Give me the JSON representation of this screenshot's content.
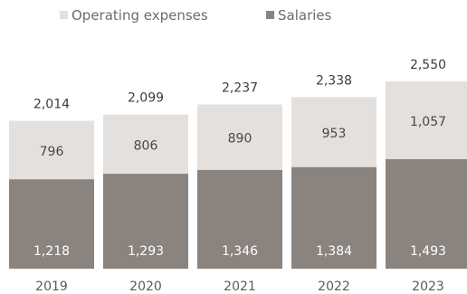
{
  "chart_data": {
    "type": "bar",
    "stacked": true,
    "categories": [
      "2019",
      "2020",
      "2021",
      "2022",
      "2023"
    ],
    "series": [
      {
        "name": "Salaries",
        "values": [
          1218,
          1293,
          1346,
          1384,
          1493
        ]
      },
      {
        "name": "Operating expenses",
        "values": [
          796,
          806,
          890,
          953,
          1057
        ]
      }
    ],
    "totals": [
      2014,
      2099,
      2237,
      2338,
      2550
    ],
    "value_labels": {
      "Salaries": [
        "1,218",
        "1,293",
        "1,346",
        "1,384",
        "1,493"
      ],
      "Operating expenses": [
        "796",
        "806",
        "890",
        "953",
        "1,057"
      ],
      "totals": [
        "2,014",
        "2,099",
        "2,237",
        "2,338",
        "2,550"
      ]
    },
    "legend": {
      "position": "top-left",
      "items": [
        "Operating expenses",
        "Salaries"
      ]
    },
    "colors": {
      "Salaries": "#8a837e",
      "Operating expenses": "#e4e0dd"
    },
    "ylim": [
      0,
      2550
    ],
    "grid": false
  }
}
